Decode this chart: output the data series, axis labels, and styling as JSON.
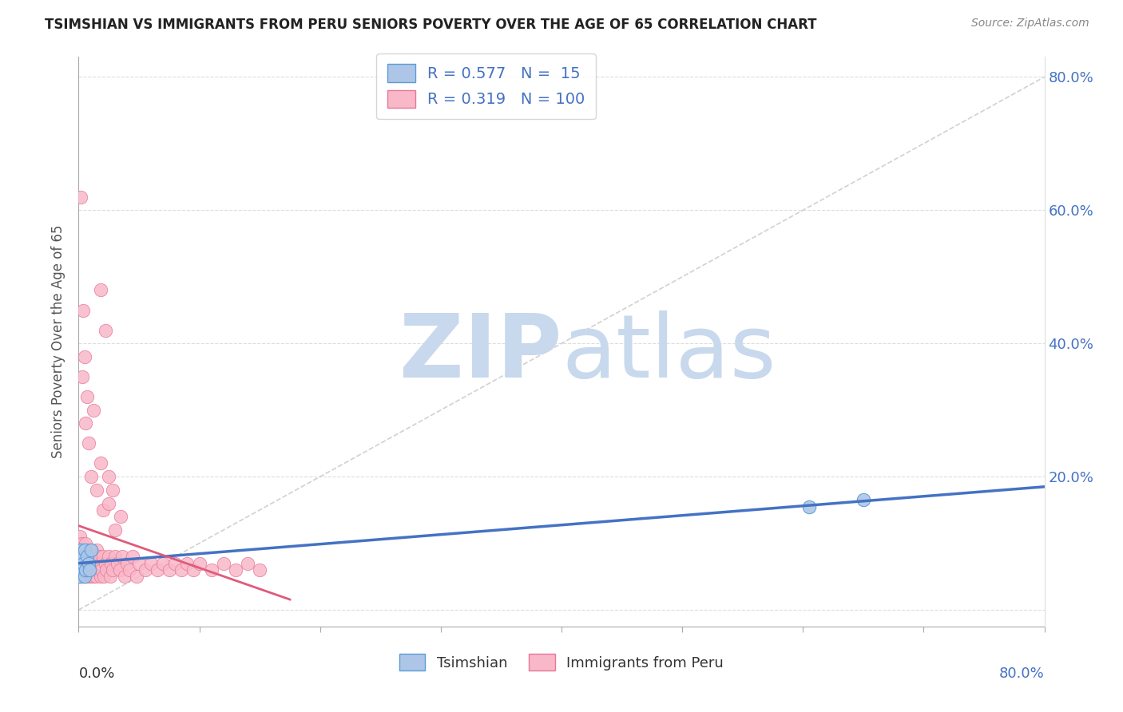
{
  "title": "TSIMSHIAN VS IMMIGRANTS FROM PERU SENIORS POVERTY OVER THE AGE OF 65 CORRELATION CHART",
  "source": "Source: ZipAtlas.com",
  "ylabel": "Seniors Poverty Over the Age of 65",
  "tsimshian_R": 0.577,
  "tsimshian_N": 15,
  "peru_R": 0.319,
  "peru_N": 100,
  "tsimshian_color": "#adc6e8",
  "tsimshian_edge_color": "#5b9bd5",
  "tsimshian_line_color": "#4472c4",
  "peru_color": "#f9b8c8",
  "peru_edge_color": "#e8759a",
  "peru_line_color": "#e05a7a",
  "watermark_zip_color": "#c8d8ed",
  "watermark_atlas_color": "#c8d8ed",
  "legend_label_1": "Tsimshian",
  "legend_label_2": "Immigrants from Peru",
  "background_color": "#ffffff",
  "dashed_line_color": "#cccccc",
  "grid_color": "#dddddd",
  "xmin": 0.0,
  "xmax": 0.8,
  "ymin": -0.025,
  "ymax": 0.83,
  "tsimshian_x": [
    0.0,
    0.001,
    0.002,
    0.003,
    0.003,
    0.004,
    0.005,
    0.005,
    0.006,
    0.007,
    0.008,
    0.009,
    0.01,
    0.605,
    0.65
  ],
  "tsimshian_y": [
    0.07,
    0.05,
    0.09,
    0.06,
    0.08,
    0.07,
    0.05,
    0.09,
    0.06,
    0.08,
    0.07,
    0.06,
    0.09,
    0.155,
    0.165
  ],
  "peru_x": [
    0.0,
    0.0,
    0.0,
    0.0,
    0.0,
    0.001,
    0.001,
    0.001,
    0.001,
    0.002,
    0.002,
    0.002,
    0.003,
    0.003,
    0.003,
    0.003,
    0.004,
    0.004,
    0.004,
    0.005,
    0.005,
    0.005,
    0.006,
    0.006,
    0.006,
    0.007,
    0.007,
    0.007,
    0.008,
    0.008,
    0.009,
    0.009,
    0.01,
    0.01,
    0.011,
    0.011,
    0.012,
    0.012,
    0.013,
    0.013,
    0.014,
    0.015,
    0.015,
    0.016,
    0.017,
    0.018,
    0.018,
    0.019,
    0.02,
    0.021,
    0.022,
    0.023,
    0.025,
    0.026,
    0.027,
    0.028,
    0.03,
    0.032,
    0.034,
    0.036,
    0.038,
    0.04,
    0.042,
    0.045,
    0.048,
    0.05,
    0.055,
    0.06,
    0.065,
    0.07,
    0.075,
    0.08,
    0.085,
    0.09,
    0.095,
    0.1,
    0.11,
    0.12,
    0.13,
    0.14,
    0.15,
    0.002,
    0.003,
    0.004,
    0.005,
    0.006,
    0.007,
    0.008,
    0.01,
    0.012,
    0.015,
    0.018,
    0.02,
    0.025,
    0.028,
    0.022,
    0.03,
    0.018,
    0.035,
    0.025
  ],
  "peru_y": [
    0.08,
    0.06,
    0.1,
    0.05,
    0.09,
    0.07,
    0.05,
    0.11,
    0.08,
    0.06,
    0.09,
    0.07,
    0.05,
    0.08,
    0.1,
    0.07,
    0.06,
    0.08,
    0.05,
    0.07,
    0.09,
    0.06,
    0.05,
    0.08,
    0.1,
    0.06,
    0.07,
    0.09,
    0.05,
    0.08,
    0.06,
    0.07,
    0.05,
    0.09,
    0.06,
    0.08,
    0.05,
    0.07,
    0.06,
    0.08,
    0.05,
    0.07,
    0.09,
    0.06,
    0.08,
    0.05,
    0.07,
    0.06,
    0.08,
    0.05,
    0.07,
    0.06,
    0.08,
    0.05,
    0.07,
    0.06,
    0.08,
    0.07,
    0.06,
    0.08,
    0.05,
    0.07,
    0.06,
    0.08,
    0.05,
    0.07,
    0.06,
    0.07,
    0.06,
    0.07,
    0.06,
    0.07,
    0.06,
    0.07,
    0.06,
    0.07,
    0.06,
    0.07,
    0.06,
    0.07,
    0.06,
    0.62,
    0.35,
    0.45,
    0.38,
    0.28,
    0.32,
    0.25,
    0.2,
    0.3,
    0.18,
    0.22,
    0.15,
    0.16,
    0.18,
    0.42,
    0.12,
    0.48,
    0.14,
    0.2
  ]
}
